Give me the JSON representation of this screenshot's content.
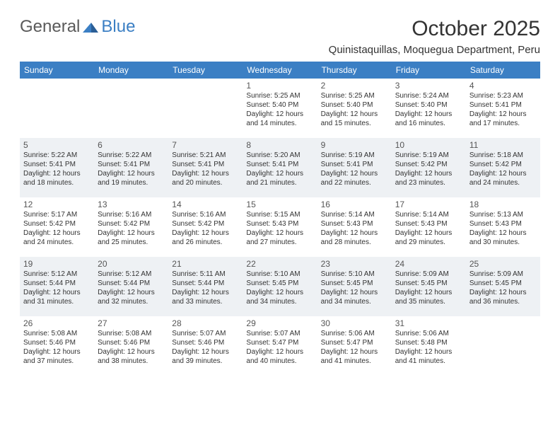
{
  "logo": {
    "text_gray": "General",
    "text_blue": "Blue"
  },
  "title": "October 2025",
  "location": "Quinistaquillas, Moquegua Department, Peru",
  "colors": {
    "header_bg": "#3b7fc4",
    "header_fg": "#ffffff",
    "alt_row_bg": "#eef1f4",
    "text": "#333333",
    "logo_gray": "#5a5a5a",
    "logo_blue": "#3b7fc4"
  },
  "typography": {
    "title_fontsize": 30,
    "location_fontsize": 15,
    "dayheader_fontsize": 12,
    "daynum_fontsize": 12,
    "info_fontsize": 10
  },
  "day_headers": [
    "Sunday",
    "Monday",
    "Tuesday",
    "Wednesday",
    "Thursday",
    "Friday",
    "Saturday"
  ],
  "weeks": [
    {
      "alt": false,
      "days": [
        null,
        null,
        null,
        {
          "n": "1",
          "sr": "5:25 AM",
          "ss": "5:40 PM",
          "dl": "12 hours and 14 minutes."
        },
        {
          "n": "2",
          "sr": "5:25 AM",
          "ss": "5:40 PM",
          "dl": "12 hours and 15 minutes."
        },
        {
          "n": "3",
          "sr": "5:24 AM",
          "ss": "5:40 PM",
          "dl": "12 hours and 16 minutes."
        },
        {
          "n": "4",
          "sr": "5:23 AM",
          "ss": "5:41 PM",
          "dl": "12 hours and 17 minutes."
        }
      ]
    },
    {
      "alt": true,
      "days": [
        {
          "n": "5",
          "sr": "5:22 AM",
          "ss": "5:41 PM",
          "dl": "12 hours and 18 minutes."
        },
        {
          "n": "6",
          "sr": "5:22 AM",
          "ss": "5:41 PM",
          "dl": "12 hours and 19 minutes."
        },
        {
          "n": "7",
          "sr": "5:21 AM",
          "ss": "5:41 PM",
          "dl": "12 hours and 20 minutes."
        },
        {
          "n": "8",
          "sr": "5:20 AM",
          "ss": "5:41 PM",
          "dl": "12 hours and 21 minutes."
        },
        {
          "n": "9",
          "sr": "5:19 AM",
          "ss": "5:41 PM",
          "dl": "12 hours and 22 minutes."
        },
        {
          "n": "10",
          "sr": "5:19 AM",
          "ss": "5:42 PM",
          "dl": "12 hours and 23 minutes."
        },
        {
          "n": "11",
          "sr": "5:18 AM",
          "ss": "5:42 PM",
          "dl": "12 hours and 24 minutes."
        }
      ]
    },
    {
      "alt": false,
      "days": [
        {
          "n": "12",
          "sr": "5:17 AM",
          "ss": "5:42 PM",
          "dl": "12 hours and 24 minutes."
        },
        {
          "n": "13",
          "sr": "5:16 AM",
          "ss": "5:42 PM",
          "dl": "12 hours and 25 minutes."
        },
        {
          "n": "14",
          "sr": "5:16 AM",
          "ss": "5:42 PM",
          "dl": "12 hours and 26 minutes."
        },
        {
          "n": "15",
          "sr": "5:15 AM",
          "ss": "5:43 PM",
          "dl": "12 hours and 27 minutes."
        },
        {
          "n": "16",
          "sr": "5:14 AM",
          "ss": "5:43 PM",
          "dl": "12 hours and 28 minutes."
        },
        {
          "n": "17",
          "sr": "5:14 AM",
          "ss": "5:43 PM",
          "dl": "12 hours and 29 minutes."
        },
        {
          "n": "18",
          "sr": "5:13 AM",
          "ss": "5:43 PM",
          "dl": "12 hours and 30 minutes."
        }
      ]
    },
    {
      "alt": true,
      "days": [
        {
          "n": "19",
          "sr": "5:12 AM",
          "ss": "5:44 PM",
          "dl": "12 hours and 31 minutes."
        },
        {
          "n": "20",
          "sr": "5:12 AM",
          "ss": "5:44 PM",
          "dl": "12 hours and 32 minutes."
        },
        {
          "n": "21",
          "sr": "5:11 AM",
          "ss": "5:44 PM",
          "dl": "12 hours and 33 minutes."
        },
        {
          "n": "22",
          "sr": "5:10 AM",
          "ss": "5:45 PM",
          "dl": "12 hours and 34 minutes."
        },
        {
          "n": "23",
          "sr": "5:10 AM",
          "ss": "5:45 PM",
          "dl": "12 hours and 34 minutes."
        },
        {
          "n": "24",
          "sr": "5:09 AM",
          "ss": "5:45 PM",
          "dl": "12 hours and 35 minutes."
        },
        {
          "n": "25",
          "sr": "5:09 AM",
          "ss": "5:45 PM",
          "dl": "12 hours and 36 minutes."
        }
      ]
    },
    {
      "alt": false,
      "days": [
        {
          "n": "26",
          "sr": "5:08 AM",
          "ss": "5:46 PM",
          "dl": "12 hours and 37 minutes."
        },
        {
          "n": "27",
          "sr": "5:08 AM",
          "ss": "5:46 PM",
          "dl": "12 hours and 38 minutes."
        },
        {
          "n": "28",
          "sr": "5:07 AM",
          "ss": "5:46 PM",
          "dl": "12 hours and 39 minutes."
        },
        {
          "n": "29",
          "sr": "5:07 AM",
          "ss": "5:47 PM",
          "dl": "12 hours and 40 minutes."
        },
        {
          "n": "30",
          "sr": "5:06 AM",
          "ss": "5:47 PM",
          "dl": "12 hours and 41 minutes."
        },
        {
          "n": "31",
          "sr": "5:06 AM",
          "ss": "5:48 PM",
          "dl": "12 hours and 41 minutes."
        },
        null
      ]
    }
  ],
  "labels": {
    "sunrise": "Sunrise:",
    "sunset": "Sunset:",
    "daylight": "Daylight:"
  }
}
